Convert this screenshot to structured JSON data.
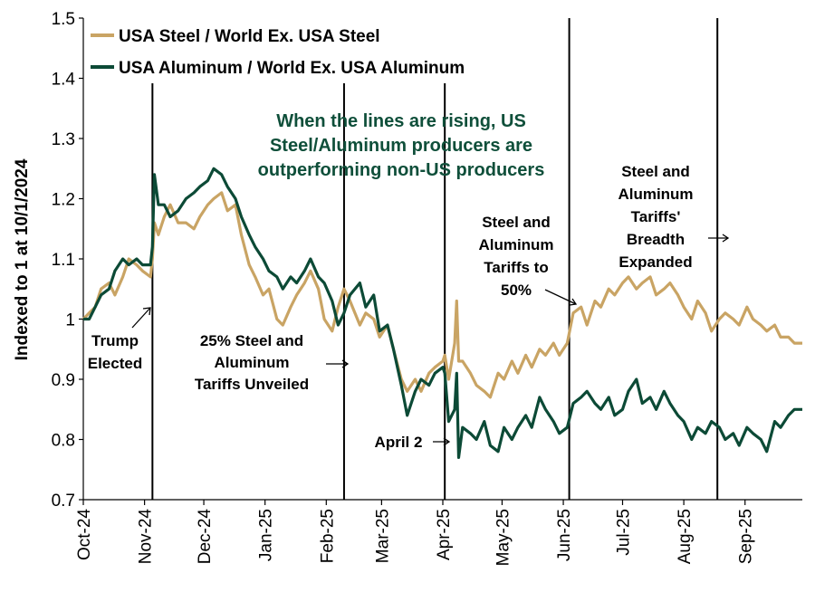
{
  "colors": {
    "steel": "#c9a464",
    "aluminum": "#0c4a36",
    "callout": "#0f4f3a",
    "event_line": "#000000"
  },
  "chart_data": {
    "type": "line",
    "title": "",
    "xlabel": "",
    "ylabel": "Indexed to 1 at 10/1/2024",
    "ylim": [
      0.7,
      1.5
    ],
    "yticks": [
      "0.7",
      "0.8",
      "0.9",
      "1",
      "1.1",
      "1.2",
      "1.3",
      "1.4",
      "1.5"
    ],
    "xlim": [
      "2024-10-01",
      "2025-09-30"
    ],
    "xticks": [
      {
        "date": "2024-10-01",
        "label": "Oct-24"
      },
      {
        "date": "2024-11-01",
        "label": "Nov-24"
      },
      {
        "date": "2024-12-01",
        "label": "Dec-24"
      },
      {
        "date": "2025-01-01",
        "label": "Jan-25"
      },
      {
        "date": "2025-02-01",
        "label": "Feb-25"
      },
      {
        "date": "2025-03-01",
        "label": "Mar-25"
      },
      {
        "date": "2025-04-01",
        "label": "Apr-25"
      },
      {
        "date": "2025-05-01",
        "label": "May-25"
      },
      {
        "date": "2025-06-01",
        "label": "Jun-25"
      },
      {
        "date": "2025-07-01",
        "label": "Jul-25"
      },
      {
        "date": "2025-08-01",
        "label": "Aug-25"
      },
      {
        "date": "2025-09-01",
        "label": "Sep-25"
      }
    ],
    "legend_position": "top-left",
    "series": [
      {
        "name": "USA Steel / World Ex. USA Steel",
        "color": "#c9a464",
        "points": [
          [
            "2024-10-01",
            1.0
          ],
          [
            "2024-10-04",
            1.01
          ],
          [
            "2024-10-07",
            1.02
          ],
          [
            "2024-10-10",
            1.05
          ],
          [
            "2024-10-14",
            1.06
          ],
          [
            "2024-10-17",
            1.04
          ],
          [
            "2024-10-21",
            1.07
          ],
          [
            "2024-10-24",
            1.1
          ],
          [
            "2024-10-28",
            1.09
          ],
          [
            "2024-10-31",
            1.08
          ],
          [
            "2024-11-04",
            1.07
          ],
          [
            "2024-11-05",
            1.1
          ],
          [
            "2024-11-06",
            1.16
          ],
          [
            "2024-11-08",
            1.14
          ],
          [
            "2024-11-11",
            1.17
          ],
          [
            "2024-11-14",
            1.19
          ],
          [
            "2024-11-18",
            1.16
          ],
          [
            "2024-11-22",
            1.16
          ],
          [
            "2024-11-26",
            1.15
          ],
          [
            "2024-11-29",
            1.17
          ],
          [
            "2024-12-03",
            1.19
          ],
          [
            "2024-12-06",
            1.2
          ],
          [
            "2024-12-10",
            1.21
          ],
          [
            "2024-12-13",
            1.18
          ],
          [
            "2024-12-17",
            1.19
          ],
          [
            "2024-12-20",
            1.14
          ],
          [
            "2024-12-24",
            1.09
          ],
          [
            "2024-12-27",
            1.07
          ],
          [
            "2024-12-31",
            1.04
          ],
          [
            "2025-01-03",
            1.05
          ],
          [
            "2025-01-07",
            1.0
          ],
          [
            "2025-01-10",
            0.99
          ],
          [
            "2025-01-14",
            1.02
          ],
          [
            "2025-01-17",
            1.04
          ],
          [
            "2025-01-21",
            1.06
          ],
          [
            "2025-01-24",
            1.08
          ],
          [
            "2025-01-28",
            1.05
          ],
          [
            "2025-01-31",
            1.0
          ],
          [
            "2025-02-04",
            0.98
          ],
          [
            "2025-02-07",
            1.02
          ],
          [
            "2025-02-10",
            1.05
          ],
          [
            "2025-02-13",
            1.03
          ],
          [
            "2025-02-18",
            0.99
          ],
          [
            "2025-02-21",
            1.01
          ],
          [
            "2025-02-25",
            1.0
          ],
          [
            "2025-02-28",
            0.97
          ],
          [
            "2025-03-04",
            0.99
          ],
          [
            "2025-03-07",
            0.95
          ],
          [
            "2025-03-11",
            0.9
          ],
          [
            "2025-03-14",
            0.88
          ],
          [
            "2025-03-18",
            0.9
          ],
          [
            "2025-03-21",
            0.88
          ],
          [
            "2025-03-25",
            0.91
          ],
          [
            "2025-03-28",
            0.92
          ],
          [
            "2025-04-01",
            0.93
          ],
          [
            "2025-04-02",
            0.94
          ],
          [
            "2025-04-04",
            0.9
          ],
          [
            "2025-04-07",
            0.96
          ],
          [
            "2025-04-08",
            1.03
          ],
          [
            "2025-04-09",
            0.93
          ],
          [
            "2025-04-11",
            0.93
          ],
          [
            "2025-04-15",
            0.91
          ],
          [
            "2025-04-18",
            0.89
          ],
          [
            "2025-04-22",
            0.88
          ],
          [
            "2025-04-25",
            0.87
          ],
          [
            "2025-04-29",
            0.91
          ],
          [
            "2025-05-02",
            0.9
          ],
          [
            "2025-05-06",
            0.93
          ],
          [
            "2025-05-09",
            0.91
          ],
          [
            "2025-05-13",
            0.94
          ],
          [
            "2025-05-16",
            0.92
          ],
          [
            "2025-05-20",
            0.95
          ],
          [
            "2025-05-23",
            0.94
          ],
          [
            "2025-05-27",
            0.96
          ],
          [
            "2025-05-30",
            0.94
          ],
          [
            "2025-06-03",
            0.96
          ],
          [
            "2025-06-06",
            1.01
          ],
          [
            "2025-06-10",
            1.02
          ],
          [
            "2025-06-13",
            0.99
          ],
          [
            "2025-06-17",
            1.03
          ],
          [
            "2025-06-20",
            1.02
          ],
          [
            "2025-06-24",
            1.05
          ],
          [
            "2025-06-27",
            1.04
          ],
          [
            "2025-07-01",
            1.06
          ],
          [
            "2025-07-04",
            1.07
          ],
          [
            "2025-07-08",
            1.05
          ],
          [
            "2025-07-11",
            1.06
          ],
          [
            "2025-07-15",
            1.07
          ],
          [
            "2025-07-18",
            1.04
          ],
          [
            "2025-07-22",
            1.05
          ],
          [
            "2025-07-25",
            1.06
          ],
          [
            "2025-07-29",
            1.04
          ],
          [
            "2025-08-01",
            1.02
          ],
          [
            "2025-08-05",
            1.0
          ],
          [
            "2025-08-08",
            1.03
          ],
          [
            "2025-08-12",
            1.01
          ],
          [
            "2025-08-15",
            0.98
          ],
          [
            "2025-08-19",
            1.0
          ],
          [
            "2025-08-22",
            1.01
          ],
          [
            "2025-08-26",
            1.0
          ],
          [
            "2025-08-29",
            0.99
          ],
          [
            "2025-09-02",
            1.02
          ],
          [
            "2025-09-05",
            1.0
          ],
          [
            "2025-09-09",
            0.99
          ],
          [
            "2025-09-12",
            0.98
          ],
          [
            "2025-09-16",
            0.99
          ],
          [
            "2025-09-19",
            0.97
          ],
          [
            "2025-09-23",
            0.97
          ],
          [
            "2025-09-26",
            0.96
          ],
          [
            "2025-09-30",
            0.96
          ]
        ]
      },
      {
        "name": "USA Aluminum / World Ex. USA Aluminum",
        "color": "#0c4a36",
        "points": [
          [
            "2024-10-01",
            1.0
          ],
          [
            "2024-10-04",
            1.0
          ],
          [
            "2024-10-07",
            1.02
          ],
          [
            "2024-10-10",
            1.04
          ],
          [
            "2024-10-14",
            1.05
          ],
          [
            "2024-10-17",
            1.08
          ],
          [
            "2024-10-21",
            1.1
          ],
          [
            "2024-10-24",
            1.09
          ],
          [
            "2024-10-28",
            1.1
          ],
          [
            "2024-10-31",
            1.09
          ],
          [
            "2024-11-04",
            1.09
          ],
          [
            "2024-11-05",
            1.12
          ],
          [
            "2024-11-06",
            1.24
          ],
          [
            "2024-11-08",
            1.19
          ],
          [
            "2024-11-11",
            1.19
          ],
          [
            "2024-11-14",
            1.17
          ],
          [
            "2024-11-18",
            1.18
          ],
          [
            "2024-11-22",
            1.2
          ],
          [
            "2024-11-26",
            1.21
          ],
          [
            "2024-11-29",
            1.22
          ],
          [
            "2024-12-03",
            1.23
          ],
          [
            "2024-12-06",
            1.25
          ],
          [
            "2024-12-10",
            1.24
          ],
          [
            "2024-12-13",
            1.22
          ],
          [
            "2024-12-17",
            1.2
          ],
          [
            "2024-12-20",
            1.17
          ],
          [
            "2024-12-24",
            1.14
          ],
          [
            "2024-12-27",
            1.12
          ],
          [
            "2024-12-31",
            1.1
          ],
          [
            "2025-01-03",
            1.08
          ],
          [
            "2025-01-07",
            1.07
          ],
          [
            "2025-01-10",
            1.05
          ],
          [
            "2025-01-14",
            1.07
          ],
          [
            "2025-01-17",
            1.06
          ],
          [
            "2025-01-21",
            1.08
          ],
          [
            "2025-01-24",
            1.1
          ],
          [
            "2025-01-28",
            1.07
          ],
          [
            "2025-01-31",
            1.06
          ],
          [
            "2025-02-04",
            1.03
          ],
          [
            "2025-02-07",
            0.99
          ],
          [
            "2025-02-10",
            1.01
          ],
          [
            "2025-02-13",
            1.04
          ],
          [
            "2025-02-18",
            1.06
          ],
          [
            "2025-02-21",
            1.02
          ],
          [
            "2025-02-25",
            1.04
          ],
          [
            "2025-02-28",
            0.98
          ],
          [
            "2025-03-04",
            0.99
          ],
          [
            "2025-03-07",
            0.95
          ],
          [
            "2025-03-11",
            0.89
          ],
          [
            "2025-03-14",
            0.84
          ],
          [
            "2025-03-18",
            0.88
          ],
          [
            "2025-03-21",
            0.9
          ],
          [
            "2025-03-25",
            0.89
          ],
          [
            "2025-03-28",
            0.91
          ],
          [
            "2025-04-01",
            0.92
          ],
          [
            "2025-04-02",
            0.91
          ],
          [
            "2025-04-04",
            0.83
          ],
          [
            "2025-04-07",
            0.85
          ],
          [
            "2025-04-08",
            0.91
          ],
          [
            "2025-04-09",
            0.77
          ],
          [
            "2025-04-11",
            0.82
          ],
          [
            "2025-04-15",
            0.81
          ],
          [
            "2025-04-18",
            0.8
          ],
          [
            "2025-04-22",
            0.83
          ],
          [
            "2025-04-25",
            0.79
          ],
          [
            "2025-04-29",
            0.78
          ],
          [
            "2025-05-02",
            0.82
          ],
          [
            "2025-05-06",
            0.8
          ],
          [
            "2025-05-09",
            0.82
          ],
          [
            "2025-05-13",
            0.84
          ],
          [
            "2025-05-16",
            0.82
          ],
          [
            "2025-05-20",
            0.87
          ],
          [
            "2025-05-23",
            0.85
          ],
          [
            "2025-05-27",
            0.83
          ],
          [
            "2025-05-30",
            0.81
          ],
          [
            "2025-06-03",
            0.82
          ],
          [
            "2025-06-06",
            0.86
          ],
          [
            "2025-06-10",
            0.87
          ],
          [
            "2025-06-13",
            0.88
          ],
          [
            "2025-06-17",
            0.86
          ],
          [
            "2025-06-20",
            0.85
          ],
          [
            "2025-06-24",
            0.87
          ],
          [
            "2025-06-27",
            0.84
          ],
          [
            "2025-07-01",
            0.85
          ],
          [
            "2025-07-04",
            0.88
          ],
          [
            "2025-07-08",
            0.9
          ],
          [
            "2025-07-11",
            0.86
          ],
          [
            "2025-07-15",
            0.87
          ],
          [
            "2025-07-18",
            0.85
          ],
          [
            "2025-07-22",
            0.88
          ],
          [
            "2025-07-25",
            0.86
          ],
          [
            "2025-07-29",
            0.84
          ],
          [
            "2025-08-01",
            0.83
          ],
          [
            "2025-08-05",
            0.8
          ],
          [
            "2025-08-08",
            0.82
          ],
          [
            "2025-08-12",
            0.81
          ],
          [
            "2025-08-15",
            0.83
          ],
          [
            "2025-08-19",
            0.82
          ],
          [
            "2025-08-22",
            0.8
          ],
          [
            "2025-08-26",
            0.81
          ],
          [
            "2025-08-29",
            0.79
          ],
          [
            "2025-09-02",
            0.82
          ],
          [
            "2025-09-05",
            0.81
          ],
          [
            "2025-09-09",
            0.8
          ],
          [
            "2025-09-12",
            0.78
          ],
          [
            "2025-09-16",
            0.83
          ],
          [
            "2025-09-19",
            0.82
          ],
          [
            "2025-09-23",
            0.84
          ],
          [
            "2025-09-26",
            0.85
          ],
          [
            "2025-09-30",
            0.85
          ]
        ]
      }
    ],
    "event_lines": [
      {
        "date": "2024-11-05",
        "label": "Trump Elected"
      },
      {
        "date": "2025-02-10",
        "label": "25% Steel and Aluminum Tariffs Unveiled"
      },
      {
        "date": "2025-04-02",
        "label": "April 2"
      },
      {
        "date": "2025-06-04",
        "label": "Steel and Aluminum Tariffs to 50%"
      },
      {
        "date": "2025-08-18",
        "label": "Steel and Aluminum Tariffs' Breadth Expanded"
      }
    ],
    "annotations": {
      "callout": [
        "When the lines are rising, US",
        "Steel/Aluminum producers are",
        "outperforming non-US producers"
      ],
      "trump": [
        "Trump",
        "Elected"
      ],
      "tariffs25": [
        "25% Steel and",
        "Aluminum",
        "Tariffs Unveiled"
      ],
      "april2": "April 2",
      "tariffs50": [
        "Steel and",
        "Aluminum",
        "Tariffs to",
        "50%"
      ],
      "breadth": [
        "Steel and",
        "Aluminum",
        "Tariffs'",
        "Breadth",
        "Expanded"
      ]
    }
  }
}
